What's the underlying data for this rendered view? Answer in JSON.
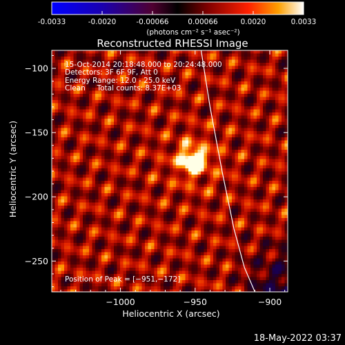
{
  "colorbar": {
    "ticks": [
      "-0.0033",
      "-0.0020",
      "-0.00066",
      "0.00066",
      "0.0020",
      "0.0033"
    ],
    "unit_label": "(photons cm⁻² s⁻¹ asec⁻²)",
    "range": [
      -0.0033,
      0.0033
    ]
  },
  "chart_data": {
    "type": "heatmap",
    "title": "Reconstructed RHESSI Image",
    "xlabel": "Heliocentric X (arcsec)",
    "ylabel": "Heliocentric Y (arcsec)",
    "xlim": [
      -1046,
      -888
    ],
    "ylim": [
      -274,
      -86
    ],
    "x_ticks": [
      -1000,
      -950,
      -900
    ],
    "y_ticks": [
      -100,
      -150,
      -200,
      -250
    ],
    "x_tick_labels": [
      "−1000",
      "−950",
      "−900"
    ],
    "y_tick_labels": [
      "−100",
      "−150",
      "−200",
      "−250"
    ],
    "peak": {
      "x": -951,
      "y": -172
    },
    "limb_curve": {
      "x": [
        -946,
        -940,
        -932,
        -924,
        -917,
        -910
      ],
      "y": [
        -86,
        -130,
        -180,
        -225,
        -255,
        -274
      ]
    },
    "annotations": [
      "15-Oct-2014 20:18:48.000 to 20:24:48.000",
      "Detectors: 3F 6F 9F, Att 0",
      "Energy Range: 12.0 - 25.0 keV",
      "Clean     Total counts: 8.37E+03"
    ],
    "peak_label": "Position of Peak = [−951,−172]"
  },
  "footer": {
    "timestamp": "18-May-2022 03:37"
  }
}
